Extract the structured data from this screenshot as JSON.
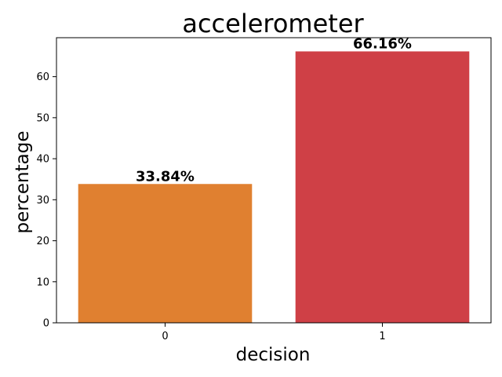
{
  "chart_data": {
    "type": "bar",
    "title": "accelerometer",
    "xlabel": "decision",
    "ylabel": "percentage",
    "categories": [
      "0",
      "1"
    ],
    "values": [
      33.84,
      66.16
    ],
    "data_labels": [
      "33.84%",
      "66.16%"
    ],
    "colors": [
      "#e08030",
      "#cf4046"
    ],
    "ylim": [
      0,
      69.5
    ],
    "yticks": [
      0,
      10,
      20,
      30,
      40,
      50,
      60
    ],
    "grid": false,
    "legend": "none"
  }
}
